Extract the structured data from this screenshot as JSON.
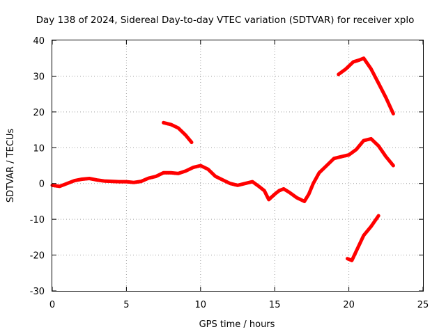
{
  "chart_data": {
    "type": "line",
    "title": "Day 138 of 2024, Sidereal Day-to-day VTEC variation (SDTVAR) for receiver xplo",
    "xlabel": "GPS time / hours",
    "ylabel": "SDTVAR / TECUs",
    "xlim": [
      0,
      25
    ],
    "ylim": [
      -30,
      40
    ],
    "xticks": [
      0,
      5,
      10,
      15,
      20,
      25
    ],
    "yticks": [
      -30,
      -20,
      -10,
      0,
      10,
      20,
      30,
      40
    ],
    "grid": true,
    "series_color": "#ff0000",
    "series": [
      {
        "name": "main-trace",
        "x": [
          0.0,
          0.5,
          1.0,
          1.5,
          2.0,
          2.5,
          3.0,
          3.5,
          4.0,
          4.5,
          5.0,
          5.5,
          6.0,
          6.5,
          7.0,
          7.5,
          8.0,
          8.5,
          9.0,
          9.5,
          10.0,
          10.5,
          11.0,
          11.5,
          12.0,
          12.5,
          13.0,
          13.5,
          14.0,
          14.3,
          14.6,
          15.0,
          15.3,
          15.6,
          16.0,
          16.5,
          17.0,
          17.3,
          17.6,
          18.0,
          18.5,
          19.0,
          19.5,
          20.0,
          20.5,
          21.0,
          21.5,
          22.0,
          22.5,
          23.0
        ],
        "y": [
          -0.5,
          -0.8,
          0.0,
          0.8,
          1.2,
          1.4,
          1.0,
          0.7,
          0.6,
          0.5,
          0.5,
          0.3,
          0.6,
          1.5,
          2.0,
          3.0,
          3.0,
          2.8,
          3.5,
          4.5,
          5.0,
          4.0,
          2.0,
          1.0,
          0.0,
          -0.5,
          0.0,
          0.5,
          -1.0,
          -2.0,
          -4.5,
          -3.0,
          -2.0,
          -1.5,
          -2.5,
          -4.0,
          -5.0,
          -3.0,
          0.0,
          3.0,
          5.0,
          7.0,
          7.5,
          8.0,
          9.5,
          12.0,
          12.5,
          10.5,
          7.5,
          5.0
        ]
      },
      {
        "name": "arc-7h",
        "x": [
          7.5,
          8.0,
          8.5,
          9.0,
          9.4
        ],
        "y": [
          17.0,
          16.5,
          15.5,
          13.5,
          11.5
        ]
      },
      {
        "name": "arc-19h",
        "x": [
          19.3,
          19.8,
          20.3,
          20.7,
          21.0,
          21.5,
          22.0,
          22.5,
          23.0
        ],
        "y": [
          30.5,
          32.0,
          34.0,
          34.5,
          35.0,
          32.0,
          28.0,
          24.0,
          19.5
        ]
      },
      {
        "name": "arc-20h",
        "x": [
          19.9,
          20.2,
          20.6,
          21.0,
          21.5,
          22.0
        ],
        "y": [
          -21.0,
          -21.5,
          -18.0,
          -14.5,
          -12.0,
          -9.0
        ]
      }
    ]
  }
}
